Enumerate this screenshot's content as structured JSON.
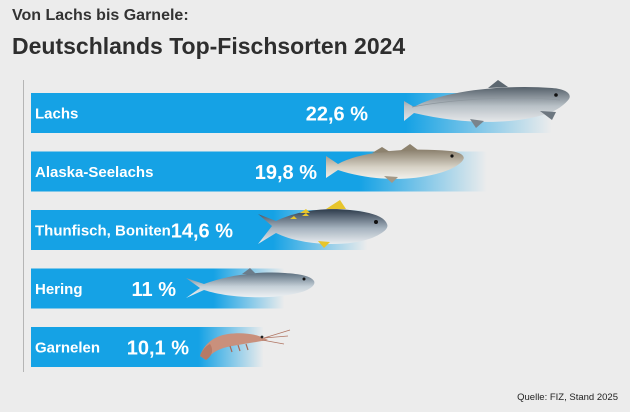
{
  "chart_data": {
    "type": "bar",
    "orientation": "horizontal",
    "subtitle": "Von Lachs bis Garnele:",
    "title": "Deutschlands Top-Fischsorten 2024",
    "categories": [
      "Lachs",
      "Alaska-Seelachs",
      "Thunfisch, Boniten",
      "Hering",
      "Garnelen"
    ],
    "values": [
      22.6,
      19.8,
      14.6,
      11,
      10.1
    ],
    "value_labels": [
      "22,6 %",
      "19,8 %",
      "14,6 %",
      "11 %",
      "10,1 %"
    ],
    "unit": "%",
    "xlim": [
      0,
      23.4
    ],
    "grid": false,
    "legend": "none",
    "bar_color": "#15a2e5",
    "icons": [
      "salmon-icon",
      "pollock-icon",
      "tuna-icon",
      "herring-icon",
      "shrimp-icon"
    ],
    "source": "Quelle:  FIZ, Stand 2025"
  }
}
